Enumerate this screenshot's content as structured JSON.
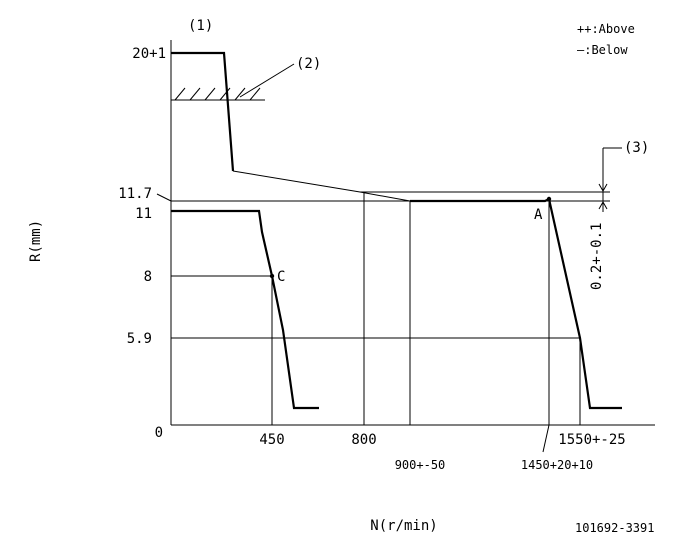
{
  "labels": {
    "figure_id": "(1)",
    "legend_above": "++:Above",
    "legend_below": "—:Below",
    "note_2": "(2)",
    "note_3": "(3)",
    "point_a": "A",
    "point_c": "C",
    "tolerance": "0.2+-0.1",
    "code": "101692-3391"
  },
  "y_axis": {
    "title": "R(mm)",
    "ticks": [
      "20+1",
      "11.7",
      "11",
      "8",
      "5.9",
      "0"
    ]
  },
  "x_axis": {
    "title": "N(r/min)",
    "ticks": [
      "450",
      "800",
      "900+-50",
      "1450+20+10",
      "1550+-25"
    ]
  }
}
